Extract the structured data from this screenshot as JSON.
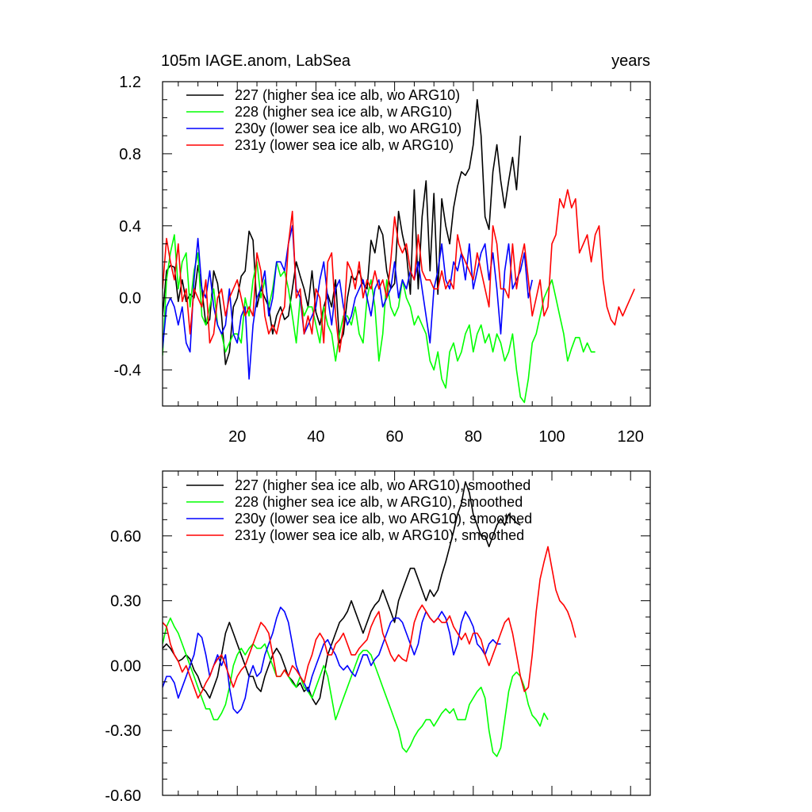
{
  "chart_data": [
    {
      "type": "line",
      "title": "105m IAGE.anom, LabSea",
      "title_right": "years",
      "xlim": [
        1,
        125
      ],
      "ylim": [
        -0.6,
        1.2
      ],
      "xticks": [
        20,
        40,
        60,
        80,
        100,
        120
      ],
      "xtick_labels": [
        "20",
        "40",
        "60",
        "80",
        "100",
        "120"
      ],
      "yticks": [
        -0.4,
        0.0,
        0.4,
        0.8,
        1.2
      ],
      "ytick_labels": [
        "-0.4",
        "0.0",
        "0.4",
        "0.8",
        "1.2"
      ],
      "legend_position": "top-left",
      "series": [
        {
          "name": "227 (higher sea ice alb, wo ARG10)",
          "color": "#000000",
          "x_start": 1,
          "values": [
            -0.1,
            0.15,
            0.18,
            0.17,
            -0.02,
            0.1,
            -0.02,
            0.02,
            0.0,
            0.18,
            0.05,
            -0.15,
            -0.12,
            0.15,
            0.08,
            -0.1,
            -0.37,
            -0.3,
            -0.05,
            0.0,
            0.12,
            0.15,
            0.37,
            0.32,
            -0.05,
            0.05,
            0.0,
            -0.05,
            -0.2,
            -0.1,
            -0.05,
            -0.12,
            -0.1,
            0.05,
            0.2,
            0.12,
            0.05,
            -0.05,
            0.15,
            -0.08,
            -0.15,
            -0.05,
            0.02,
            -0.05,
            0.1,
            -0.25,
            -0.2,
            0.0,
            0.12,
            0.1,
            0.15,
            0.08,
            0.05,
            0.32,
            0.25,
            0.4,
            0.35,
            0.15,
            0.05,
            0.08,
            0.48,
            0.35,
            0.25,
            0.02,
            0.6,
            0.05,
            0.45,
            0.65,
            0.15,
            0.58,
            0.02,
            0.55,
            0.4,
            0.3,
            0.5,
            0.62,
            0.7,
            0.68,
            0.72,
            0.85,
            1.1,
            0.9,
            0.45,
            0.38,
            0.7,
            0.85,
            0.65,
            0.5,
            0.65,
            0.78,
            0.6,
            0.9
          ]
        },
        {
          "name": "228 (higher sea ice alb, w ARG10)",
          "color": "#00ff00",
          "x_start": 1,
          "values": [
            -0.32,
            0.1,
            0.25,
            0.35,
            0.05,
            0.2,
            0.25,
            -0.05,
            0.15,
            0.25,
            -0.1,
            -0.15,
            -0.05,
            0.05,
            -0.15,
            -0.2,
            -0.3,
            -0.25,
            -0.2,
            -0.2,
            -0.25,
            0.0,
            -0.1,
            0.1,
            0.2,
            0.0,
            0.1,
            -0.05,
            0.05,
            0.2,
            0.12,
            0.15,
            0.05,
            -0.1,
            -0.25,
            0.0,
            -0.1,
            -0.05,
            -0.05,
            -0.15,
            -0.25,
            -0.05,
            -0.15,
            -0.2,
            -0.35,
            -0.2,
            -0.1,
            -0.1,
            -0.15,
            -0.05,
            -0.2,
            -0.25,
            0.0,
            0.1,
            -0.05,
            -0.35,
            -0.2,
            0.1,
            -0.05,
            -0.1,
            -0.05,
            0.1,
            0.0,
            -0.05,
            -0.15,
            -0.1,
            -0.15,
            -0.2,
            -0.35,
            -0.4,
            -0.3,
            -0.45,
            -0.5,
            -0.3,
            -0.25,
            -0.35,
            -0.3,
            -0.2,
            -0.15,
            -0.3,
            -0.2,
            -0.15,
            -0.25,
            -0.2,
            -0.3,
            -0.2,
            -0.25,
            -0.35,
            -0.3,
            -0.2,
            -0.4,
            -0.55,
            -0.58,
            -0.45,
            -0.25,
            -0.2,
            -0.1,
            0.0,
            0.05,
            0.1,
            0.0,
            -0.1,
            -0.2,
            -0.35,
            -0.28,
            -0.22,
            -0.22,
            -0.3,
            -0.25,
            -0.3,
            -0.3
          ]
        },
        {
          "name": "230y (lower sea ice alb, wo ARG10)",
          "color": "#0000ff",
          "x_start": 1,
          "values": [
            -0.28,
            -0.05,
            0.0,
            -0.05,
            -0.15,
            -0.05,
            -0.25,
            -0.3,
            0.1,
            0.33,
            0.05,
            0.0,
            0.15,
            -0.05,
            -0.15,
            -0.2,
            -0.15,
            0.05,
            -0.2,
            -0.25,
            -0.1,
            -0.05,
            -0.45,
            -0.15,
            0.0,
            0.05,
            0.15,
            -0.1,
            0.0,
            0.2,
            0.2,
            0.15,
            0.3,
            0.4,
            0.05,
            0.0,
            -0.2,
            -0.15,
            -0.1,
            -0.05,
            0.1,
            0.2,
            0.0,
            -0.15,
            0.05,
            0.1,
            -0.05,
            -0.15,
            -0.1,
            0.0,
            0.05,
            0.1,
            0.0,
            -0.1,
            0.05,
            0.1,
            -0.05,
            0.0,
            0.05,
            0.2,
            0.0,
            0.1,
            0.05,
            0.15,
            0.1,
            0.2,
            0.05,
            -0.1,
            -0.25,
            0.05,
            0.15,
            0.3,
            0.1,
            0.05,
            0.2,
            0.15,
            0.25,
            0.1,
            0.3,
            0.05,
            0.15,
            0.25,
            0.3,
            0.1,
            0.25,
            0.05,
            -0.2,
            0.15,
            0.3,
            0.05,
            0.1,
            0.15,
            0.25,
            0.0,
            0.1
          ]
        },
        {
          "name": "231y (lower sea ice alb, w ARG10)",
          "color": "#ff0000",
          "x_start": 1,
          "values": [
            0.05,
            0.33,
            0.2,
            0.1,
            0.3,
            -0.02,
            0.05,
            -0.2,
            0.05,
            0.0,
            -0.05,
            0.1,
            -0.25,
            -0.2,
            0.0,
            0.05,
            -0.1,
            0.0,
            0.05,
            0.1,
            0.0,
            -0.1,
            -0.05,
            -0.1,
            0.25,
            0.15,
            -0.1,
            -0.2,
            -0.15,
            -0.2,
            -0.1,
            -0.05,
            0.3,
            0.48,
            0.0,
            0.05,
            -0.2,
            -0.1,
            -0.2,
            0.05,
            0.0,
            -0.25,
            0.2,
            0.25,
            -0.1,
            -0.3,
            -0.15,
            0.2,
            0.15,
            0.05,
            0.2,
            0.0,
            0.1,
            0.05,
            0.15,
            0.05,
            0.1,
            0.0,
            0.2,
            0.45,
            0.3,
            0.25,
            0.3,
            0.15,
            0.1,
            0.35,
            0.15,
            0.1,
            0.1,
            0.05,
            0.05,
            0.15,
            0.05,
            0.1,
            0.05,
            0.35,
            0.25,
            0.2,
            0.15,
            0.1,
            0.25,
            0.15,
            0.05,
            -0.05,
            0.4,
            0.3,
            0.05,
            0.05,
            0.0,
            0.3,
            0.05,
            0.2,
            0.3,
            0.1,
            -0.1,
            0.0,
            0.1,
            -0.1,
            -0.05,
            0.3,
            0.35,
            0.55,
            0.5,
            0.6,
            0.5,
            0.55,
            0.25,
            0.3,
            0.35,
            0.2,
            0.35,
            0.4,
            0.1,
            -0.05,
            -0.12,
            -0.15,
            -0.05,
            -0.1,
            -0.05,
            0.0,
            0.05
          ]
        }
      ]
    },
    {
      "type": "line",
      "title": "",
      "xlim": [
        1,
        125
      ],
      "ylim": [
        -0.6,
        0.9
      ],
      "xticks": [
        20,
        40,
        60,
        80,
        100,
        120
      ],
      "yticks": [
        -0.6,
        -0.3,
        0.0,
        0.3,
        0.6
      ],
      "ytick_labels": [
        "-0.60",
        "-0.30",
        "0.00",
        "0.30",
        "0.60"
      ],
      "legend_position": "top-left",
      "series": [
        {
          "name": "227 (higher sea ice alb, wo ARG10), smoothed",
          "color": "#000000",
          "x_start": 1,
          "values": [
            0.08,
            0.1,
            0.08,
            0.05,
            0.02,
            0.03,
            0.05,
            0.03,
            -0.02,
            -0.05,
            -0.1,
            -0.12,
            -0.15,
            -0.1,
            -0.05,
            0.05,
            0.15,
            0.2,
            0.15,
            0.1,
            0.05,
            0.0,
            -0.05,
            -0.05,
            -0.1,
            -0.12,
            -0.05,
            0.0,
            0.05,
            0.08,
            0.05,
            0.0,
            -0.05,
            -0.07,
            -0.1,
            -0.08,
            -0.12,
            -0.1,
            -0.15,
            -0.18,
            -0.15,
            -0.05,
            0.05,
            0.1,
            0.15,
            0.2,
            0.22,
            0.25,
            0.3,
            0.25,
            0.2,
            0.15,
            0.2,
            0.25,
            0.28,
            0.3,
            0.35,
            0.3,
            0.25,
            0.2,
            0.3,
            0.35,
            0.4,
            0.45,
            0.45,
            0.4,
            0.35,
            0.3,
            0.35,
            0.32,
            0.35,
            0.42,
            0.48,
            0.55,
            0.62,
            0.7,
            0.75,
            0.85,
            0.8,
            0.7,
            0.65,
            0.6,
            0.6,
            0.55,
            0.6,
            0.65,
            0.68,
            0.65,
            0.7,
            0.68,
            0.66,
            0.65
          ]
        },
        {
          "name": "228 (higher sea ice alb, w ARG10), smoothed",
          "color": "#00ff00",
          "x_start": 1,
          "values": [
            0.1,
            0.18,
            0.22,
            0.18,
            0.15,
            0.1,
            0.05,
            0.0,
            -0.05,
            -0.1,
            -0.15,
            -0.2,
            -0.2,
            -0.25,
            -0.25,
            -0.22,
            -0.18,
            -0.1,
            0.0,
            0.05,
            0.08,
            0.05,
            0.08,
            0.1,
            0.08,
            0.08,
            0.1,
            0.05,
            0.0,
            -0.05,
            -0.05,
            -0.02,
            -0.05,
            -0.08,
            -0.1,
            -0.05,
            -0.1,
            -0.12,
            -0.15,
            -0.1,
            -0.05,
            0.0,
            -0.05,
            -0.15,
            -0.25,
            -0.2,
            -0.15,
            -0.1,
            -0.05,
            0.0,
            0.05,
            0.07,
            0.07,
            0.05,
            0.0,
            -0.05,
            -0.1,
            -0.15,
            -0.2,
            -0.25,
            -0.3,
            -0.38,
            -0.4,
            -0.37,
            -0.33,
            -0.3,
            -0.28,
            -0.25,
            -0.25,
            -0.28,
            -0.25,
            -0.22,
            -0.2,
            -0.22,
            -0.2,
            -0.25,
            -0.25,
            -0.25,
            -0.18,
            -0.15,
            -0.12,
            -0.1,
            -0.15,
            -0.3,
            -0.4,
            -0.42,
            -0.38,
            -0.25,
            -0.12,
            -0.05,
            -0.03,
            -0.05,
            -0.1,
            -0.18,
            -0.23,
            -0.25,
            -0.28,
            -0.22,
            -0.25
          ]
        },
        {
          "name": "230y (lower sea ice alb, wo ARG10), smoothed",
          "color": "#0000ff",
          "x_start": 1,
          "values": [
            -0.1,
            -0.05,
            -0.05,
            -0.08,
            -0.15,
            -0.1,
            -0.05,
            0.0,
            0.05,
            0.15,
            0.13,
            0.05,
            -0.05,
            0.0,
            0.05,
            0.0,
            0.05,
            -0.1,
            -0.2,
            -0.22,
            -0.2,
            -0.15,
            -0.05,
            0.0,
            -0.05,
            -0.03,
            0.05,
            0.1,
            0.15,
            0.22,
            0.27,
            0.25,
            0.2,
            0.1,
            0.0,
            -0.05,
            -0.08,
            -0.12,
            -0.05,
            0.0,
            0.05,
            0.1,
            0.12,
            0.08,
            0.05,
            0.0,
            -0.02,
            0.0,
            -0.03,
            -0.05,
            0.0,
            0.05,
            0.05,
            0.0,
            0.03,
            0.05,
            0.1,
            0.15,
            0.2,
            0.22,
            0.22,
            0.2,
            0.15,
            0.1,
            0.05,
            0.1,
            0.2,
            0.25,
            0.22,
            0.2,
            0.22,
            0.25,
            0.22,
            0.15,
            0.05,
            0.1,
            0.2,
            0.25,
            0.22,
            0.18,
            0.1,
            0.08,
            0.05,
            0.1,
            0.12,
            0.1,
            0.1
          ]
        },
        {
          "name": "231y (lower sea ice alb, w ARG10), smoothed",
          "color": "#ff0000",
          "x_start": 1,
          "values": [
            0.2,
            0.18,
            0.1,
            0.05,
            0.02,
            -0.03,
            0.0,
            -0.05,
            -0.1,
            -0.15,
            -0.12,
            -0.08,
            -0.05,
            0.0,
            0.03,
            0.05,
            0.0,
            -0.05,
            -0.1,
            -0.05,
            -0.02,
            0.0,
            0.05,
            0.1,
            0.15,
            0.2,
            0.18,
            0.15,
            0.05,
            -0.05,
            -0.05,
            -0.02,
            -0.05,
            0.0,
            -0.02,
            -0.05,
            -0.08,
            0.0,
            0.05,
            0.12,
            0.15,
            0.12,
            0.05,
            0.05,
            0.1,
            0.12,
            0.15,
            0.1,
            0.05,
            0.05,
            0.08,
            0.1,
            0.12,
            0.18,
            0.22,
            0.25,
            0.15,
            0.1,
            0.05,
            0.02,
            0.05,
            0.03,
            0.02,
            0.1,
            0.2,
            0.25,
            0.28,
            0.25,
            0.22,
            0.2,
            0.22,
            0.2,
            0.2,
            0.23,
            0.18,
            0.15,
            0.12,
            0.15,
            0.1,
            0.15,
            0.15,
            0.12,
            0.05,
            0.0,
            0.05,
            0.1,
            0.15,
            0.2,
            0.22,
            0.15,
            0.05,
            -0.05,
            -0.12,
            -0.1,
            0.05,
            0.25,
            0.4,
            0.48,
            0.55,
            0.45,
            0.35,
            0.3,
            0.28,
            0.25,
            0.2,
            0.13
          ]
        }
      ]
    }
  ]
}
